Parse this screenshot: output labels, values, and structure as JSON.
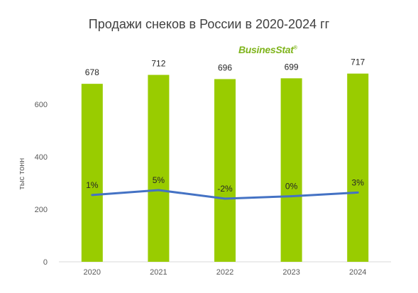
{
  "chart_data": {
    "type": "bar",
    "title": "Продажи снеков в России в 2020-2024 гг",
    "ylabel": "тыс тонн",
    "xlabel": "",
    "categories": [
      "2020",
      "2021",
      "2022",
      "2023",
      "2024"
    ],
    "values": [
      678,
      712,
      696,
      699,
      717
    ],
    "value_labels": [
      "678",
      "712",
      "696",
      "699",
      "717"
    ],
    "ylim": [
      0,
      800
    ],
    "yticks": [
      "0",
      "200",
      "400",
      "600"
    ],
    "bar_color": "#99cc00",
    "line_series": {
      "values_percent": [
        1,
        5,
        -2,
        0,
        3
      ],
      "labels": [
        "1%",
        "5%",
        "-2%",
        "0%",
        "3%"
      ],
      "color": "#4472c4"
    },
    "grid": false,
    "legend": "none"
  },
  "watermark": "BusinesStat"
}
